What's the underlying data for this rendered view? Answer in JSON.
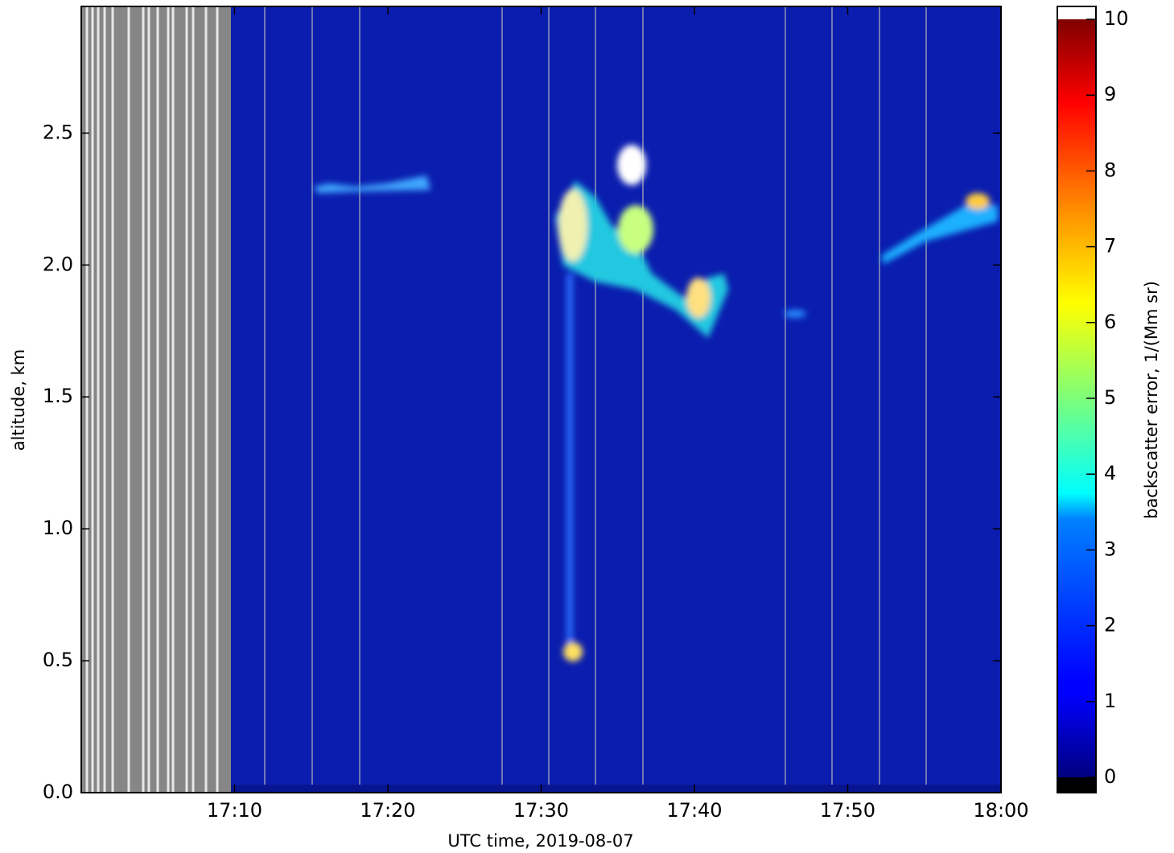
{
  "chart_data": {
    "type": "heatmap",
    "xlabel": "UTC time,  2019-08-07",
    "ylabel": "altitude, km",
    "xlim": [
      "17:00",
      "18:00"
    ],
    "xticks": [
      "17:10",
      "17:20",
      "17:30",
      "17:40",
      "17:50",
      "18:00"
    ],
    "ylim": [
      0,
      2.98
    ],
    "yticks": [
      {
        "value": 0,
        "label": "0.0"
      },
      {
        "value": 0.5,
        "label": "0.5"
      },
      {
        "value": 1,
        "label": "1.0"
      },
      {
        "value": 1.5,
        "label": "1.5"
      },
      {
        "value": 2,
        "label": "2.0"
      },
      {
        "value": 2.5,
        "label": "2.5"
      }
    ],
    "colorbar": {
      "label": "backscatter error, 1/(Mm sr)",
      "colormap": "jet",
      "lim": [
        0,
        10
      ],
      "ticks": [
        0,
        1,
        2,
        3,
        4,
        5,
        6,
        7,
        8,
        9,
        10
      ]
    }
  }
}
